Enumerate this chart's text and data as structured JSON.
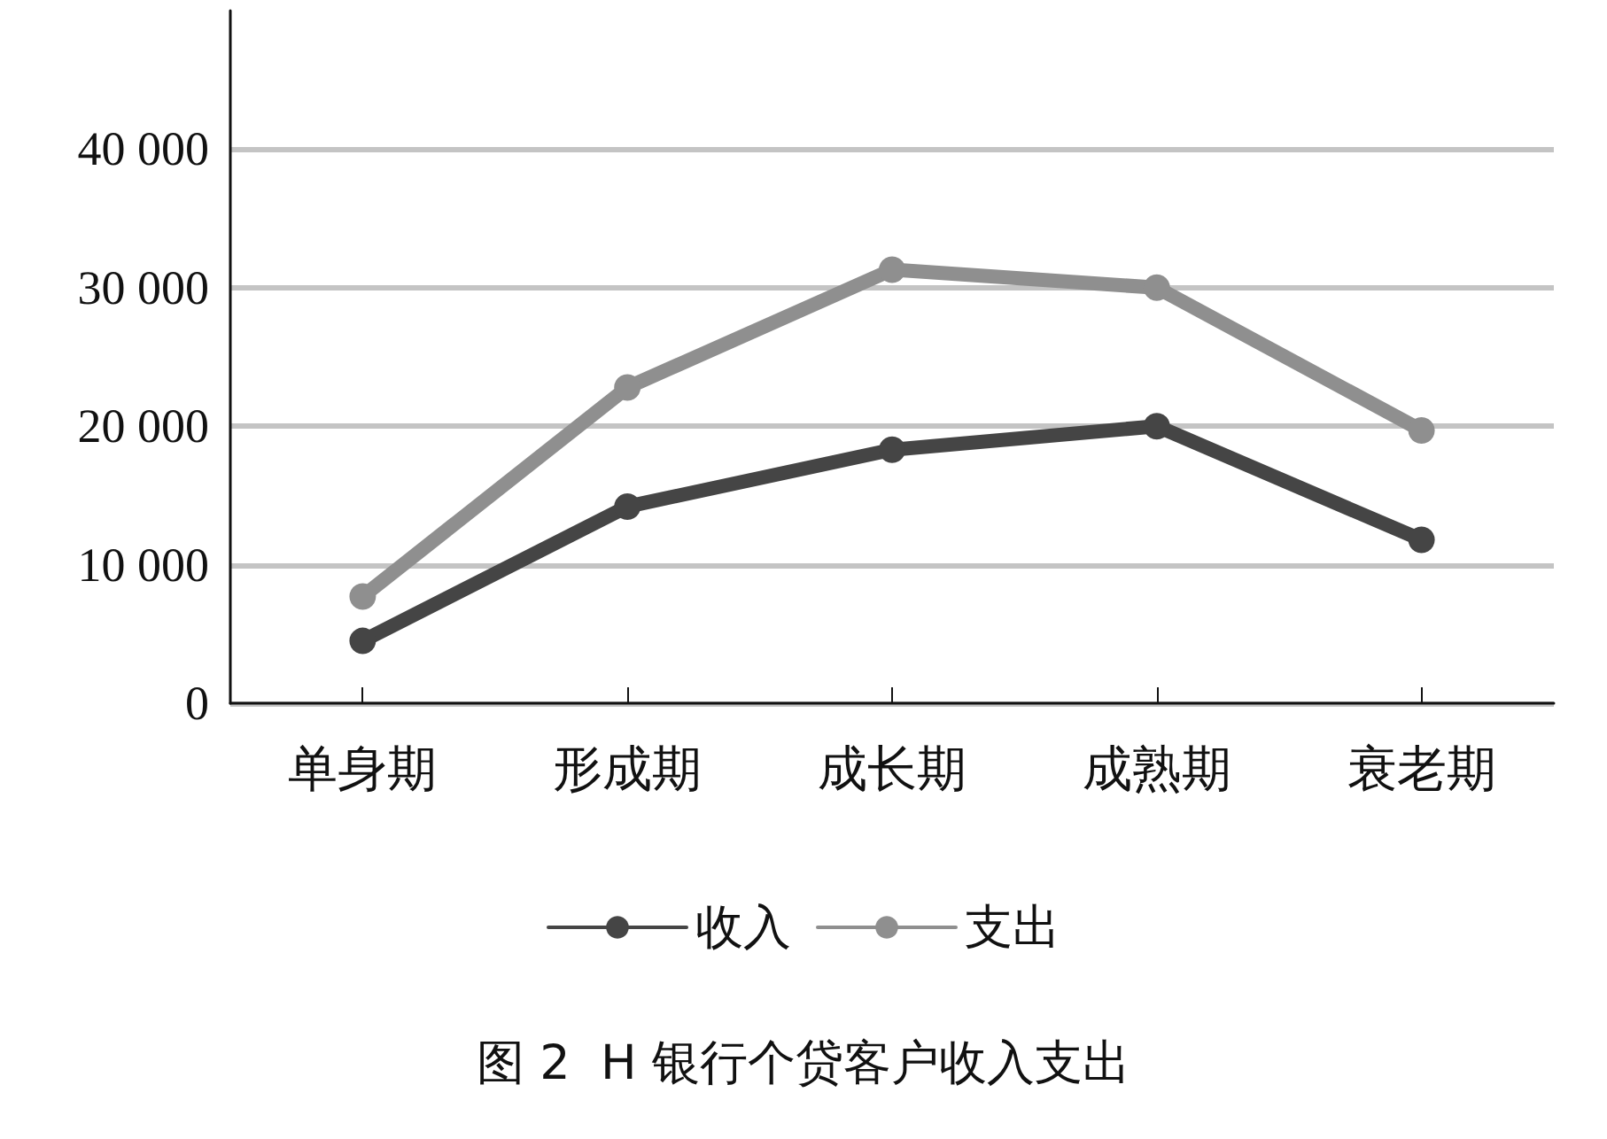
{
  "chart_data": {
    "type": "line",
    "title": "图 2  H 银行个贷客户收入支出",
    "categories": [
      "单身期",
      "形成期",
      "成长期",
      "成熟期",
      "衰老期"
    ],
    "series": [
      {
        "name": "收入",
        "color": "#454545",
        "values": [
          4500,
          14200,
          18300,
          20000,
          11800
        ]
      },
      {
        "name": "支出",
        "color": "#8f8f8f",
        "values": [
          7700,
          22800,
          31300,
          30000,
          19700
        ]
      }
    ],
    "ylim": [
      0,
      50000
    ],
    "yticks": [
      0,
      {
        "value": 10000,
        "label": "10 000"
      },
      {
        "value": 20000,
        "label": "20 000"
      },
      {
        "value": 30000,
        "label": "30 000"
      },
      {
        "value": 40000,
        "label": "40 000"
      }
    ],
    "grid": "y",
    "legend": "bottom",
    "marker": "circle"
  }
}
